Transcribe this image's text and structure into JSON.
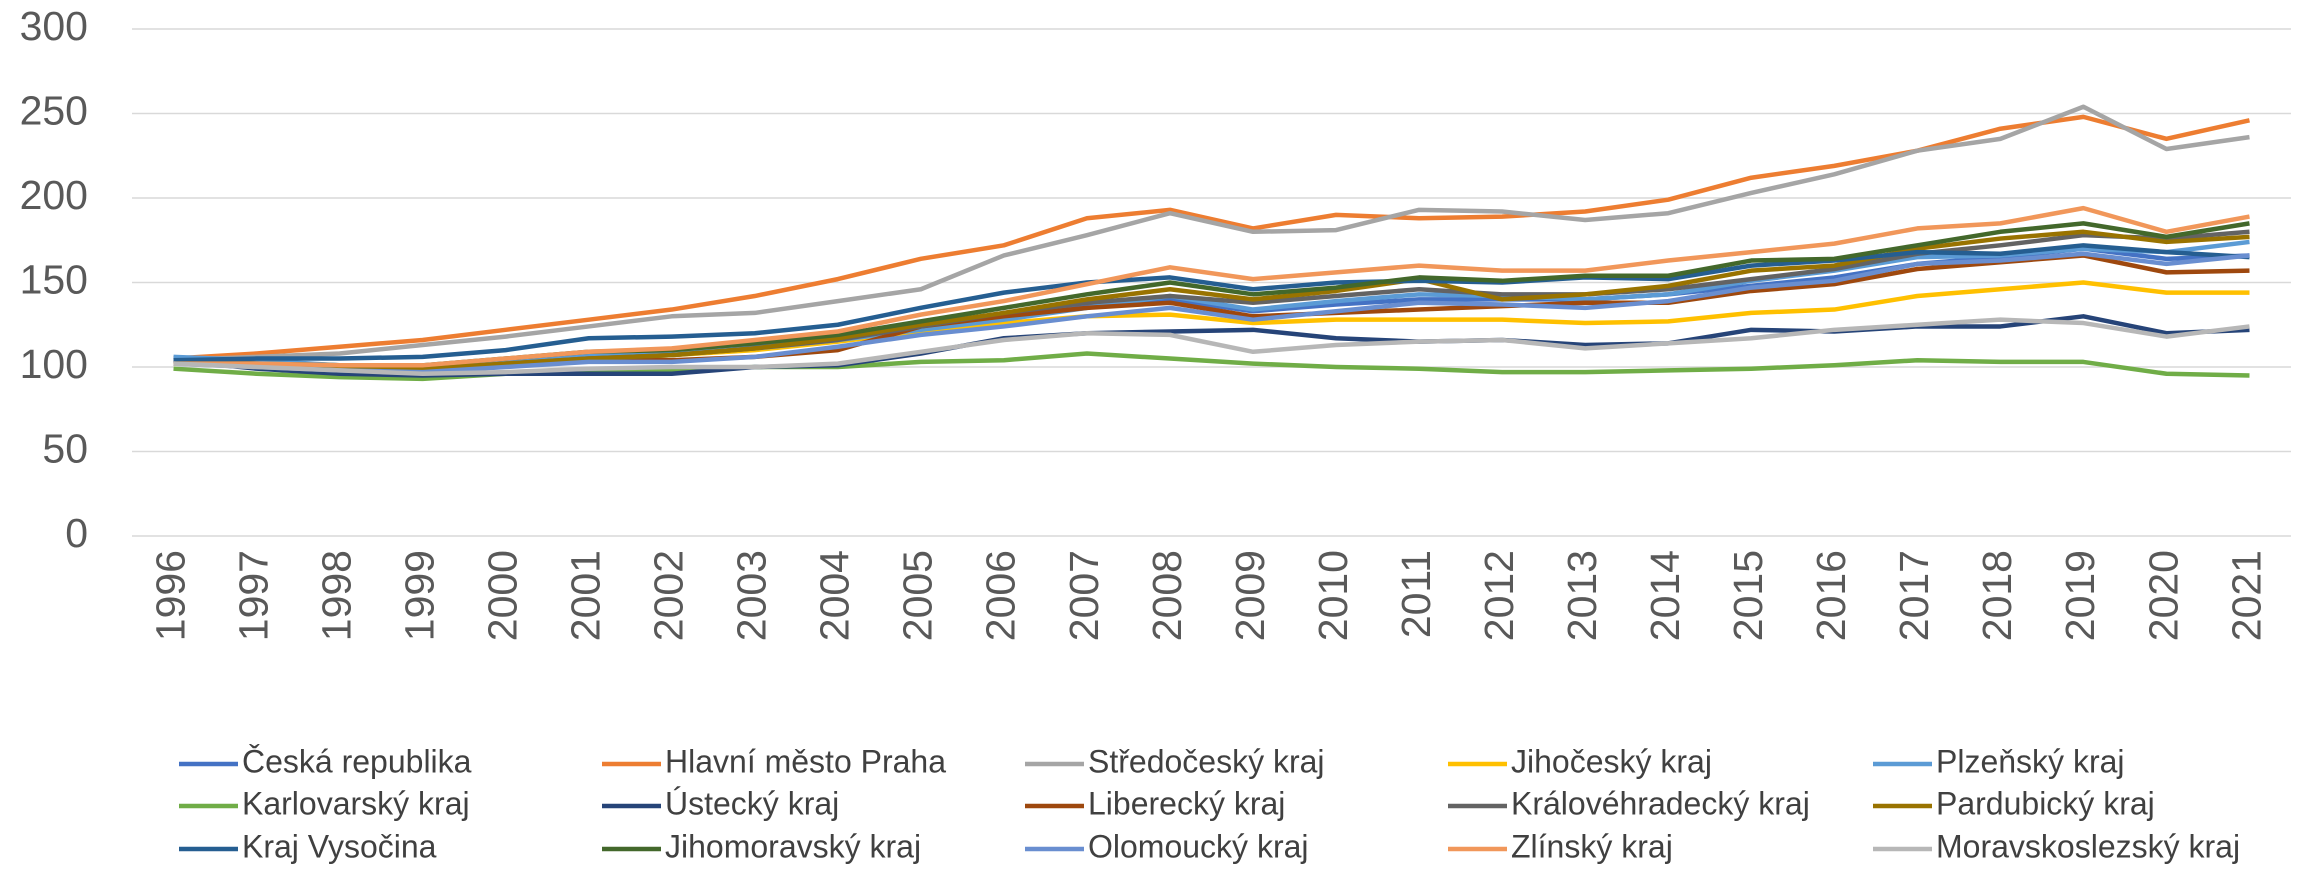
{
  "chart_data": {
    "type": "line",
    "categories": [
      "1996",
      "1997",
      "1998",
      "1999",
      "2000",
      "2001",
      "2002",
      "2003",
      "2004",
      "2005",
      "2006",
      "2007",
      "2008",
      "2009",
      "2010",
      "2011",
      "2012",
      "2013",
      "2014",
      "2015",
      "2016",
      "2017",
      "2018",
      "2019",
      "2020",
      "2021"
    ],
    "ylim": [
      0,
      300
    ],
    "yticks": [
      0,
      50,
      100,
      150,
      200,
      250,
      300
    ],
    "grid": true,
    "legend": "bottom",
    "series": [
      {
        "name": "Česká republika",
        "color": "#4472c4",
        "values": [
          104,
          103,
          101,
          100,
          104,
          108,
          110,
          113,
          118,
          124,
          130,
          136,
          140,
          133,
          137,
          140,
          140,
          140,
          143,
          148,
          153,
          161,
          165,
          170,
          164,
          166
        ]
      },
      {
        "name": "Hlavní město Praha",
        "color": "#ed7d31",
        "values": [
          105,
          108,
          112,
          116,
          122,
          128,
          134,
          142,
          152,
          164,
          172,
          188,
          193,
          182,
          190,
          188,
          189,
          192,
          199,
          212,
          219,
          228,
          241,
          248,
          235,
          246
        ]
      },
      {
        "name": "Středočeský kraj",
        "color": "#a5a5a5",
        "values": [
          104,
          106,
          108,
          113,
          118,
          124,
          130,
          132,
          139,
          146,
          166,
          178,
          191,
          180,
          181,
          193,
          192,
          187,
          191,
          203,
          214,
          228,
          235,
          254,
          229,
          236
        ]
      },
      {
        "name": "Jihočeský kraj",
        "color": "#ffc000",
        "values": [
          103,
          101,
          99,
          98,
          101,
          105,
          107,
          110,
          115,
          121,
          126,
          130,
          131,
          126,
          128,
          128,
          128,
          126,
          127,
          132,
          134,
          142,
          146,
          150,
          144,
          144
        ]
      },
      {
        "name": "Plzeňský kraj",
        "color": "#5b9bd5",
        "values": [
          106,
          104,
          101,
          100,
          103,
          107,
          108,
          111,
          116,
          122,
          128,
          135,
          142,
          134,
          139,
          143,
          142,
          140,
          143,
          151,
          157,
          165,
          166,
          170,
          168,
          174
        ]
      },
      {
        "name": "Karlovarský kraj",
        "color": "#70ad47",
        "values": [
          99,
          96,
          94,
          93,
          96,
          97,
          98,
          100,
          100,
          103,
          104,
          108,
          105,
          102,
          100,
          99,
          97,
          97,
          98,
          99,
          101,
          104,
          103,
          103,
          96,
          95
        ]
      },
      {
        "name": "Ústecký kraj",
        "color": "#264478",
        "values": [
          104,
          99,
          96,
          95,
          96,
          96,
          96,
          100,
          101,
          108,
          117,
          120,
          121,
          122,
          117,
          115,
          116,
          113,
          114,
          122,
          121,
          124,
          124,
          130,
          120,
          122
        ]
      },
      {
        "name": "Liberecký kraj",
        "color": "#9e480e",
        "values": [
          103,
          101,
          99,
          97,
          101,
          104,
          104,
          106,
          110,
          124,
          130,
          135,
          138,
          130,
          132,
          134,
          136,
          138,
          138,
          145,
          149,
          158,
          162,
          166,
          156,
          157
        ]
      },
      {
        "name": "Královéhradecký kraj",
        "color": "#636363",
        "values": [
          104,
          102,
          100,
          98,
          102,
          105,
          107,
          111,
          116,
          124,
          132,
          138,
          142,
          138,
          142,
          146,
          143,
          143,
          146,
          152,
          158,
          167,
          172,
          178,
          176,
          180
        ]
      },
      {
        "name": "Pardubický kraj",
        "color": "#997300",
        "values": [
          102,
          101,
          100,
          99,
          102,
          105,
          107,
          111,
          117,
          125,
          132,
          140,
          146,
          140,
          145,
          152,
          140,
          143,
          148,
          157,
          160,
          170,
          176,
          180,
          174,
          177
        ]
      },
      {
        "name": "Kraj Vysočina",
        "color": "#255e91",
        "values": [
          104,
          105,
          105,
          106,
          110,
          117,
          118,
          120,
          125,
          135,
          144,
          150,
          153,
          146,
          150,
          151,
          150,
          153,
          152,
          160,
          163,
          168,
          167,
          172,
          168,
          165
        ]
      },
      {
        "name": "Jihomoravský kraj",
        "color": "#43682b",
        "values": [
          102,
          102,
          101,
          101,
          105,
          109,
          110,
          114,
          119,
          127,
          135,
          143,
          150,
          143,
          147,
          153,
          151,
          154,
          154,
          163,
          164,
          172,
          180,
          185,
          177,
          185
        ]
      },
      {
        "name": "Olomoucký kraj",
        "color": "#698ed0",
        "values": [
          102,
          100,
          98,
          97,
          100,
          103,
          103,
          106,
          112,
          119,
          124,
          130,
          135,
          128,
          133,
          138,
          137,
          135,
          139,
          147,
          151,
          161,
          163,
          167,
          161,
          166
        ]
      },
      {
        "name": "Zlínský kraj",
        "color": "#f1975a",
        "values": [
          102,
          102,
          101,
          101,
          105,
          109,
          111,
          116,
          121,
          131,
          139,
          149,
          159,
          152,
          156,
          160,
          157,
          157,
          163,
          168,
          173,
          182,
          185,
          194,
          180,
          189
        ]
      },
      {
        "name": "Moravskoslezský kraj",
        "color": "#b7b7b7",
        "values": [
          102,
          100,
          98,
          96,
          97,
          99,
          100,
          100,
          102,
          109,
          116,
          120,
          119,
          109,
          113,
          115,
          116,
          111,
          114,
          117,
          122,
          125,
          128,
          126,
          118,
          124
        ]
      }
    ]
  }
}
